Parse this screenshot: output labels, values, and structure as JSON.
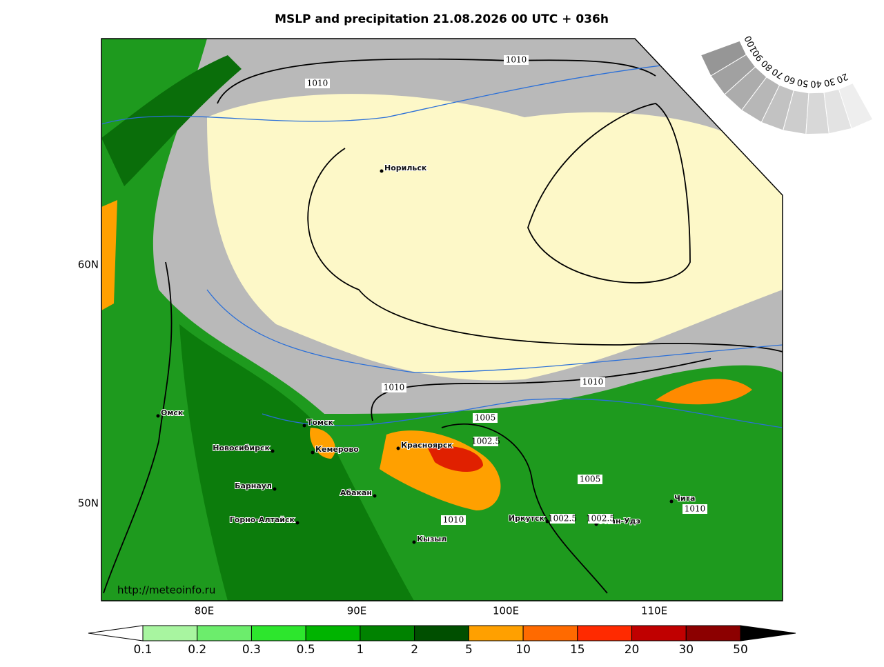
{
  "title": "MSLP and precipitation 21.08.2026 00 UTC + 036h",
  "url": "http://meteoinfo.ru",
  "lon_labels": [
    "80E",
    "90E",
    "100E",
    "110E"
  ],
  "lat_labels": [
    "60N",
    "50N"
  ],
  "cities": [
    "Норильск",
    "Омск",
    "Томск",
    "Новосибирск",
    "Кемерово",
    "Красноярск",
    "Барнаул",
    "Абакан",
    "Горно-Алтайск",
    "Кызыл",
    "Иркутск",
    "Улан-Удэ",
    "Чита"
  ],
  "isobar_labels": [
    "1010",
    "1010",
    "1010",
    "1010",
    "1005",
    "1002.5",
    "1005",
    "1010",
    "1002.5",
    "1002.5",
    "1010"
  ],
  "colorbar": {
    "labels": [
      "0.1",
      "0.2",
      "0.3",
      "0.5",
      "1",
      "2",
      "5",
      "10",
      "15",
      "20",
      "30",
      "50"
    ],
    "colors": [
      "#a8f5a0",
      "#6ced6c",
      "#2de62d",
      "#00b400",
      "#008200",
      "#004f00",
      "#ffa000",
      "#ff6a00",
      "#ff2a00",
      "#c00000",
      "#8c0000"
    ]
  },
  "cloud_scale": [
    "100",
    "90",
    "80",
    "70",
    "60",
    "50",
    "40",
    "30",
    "20"
  ]
}
